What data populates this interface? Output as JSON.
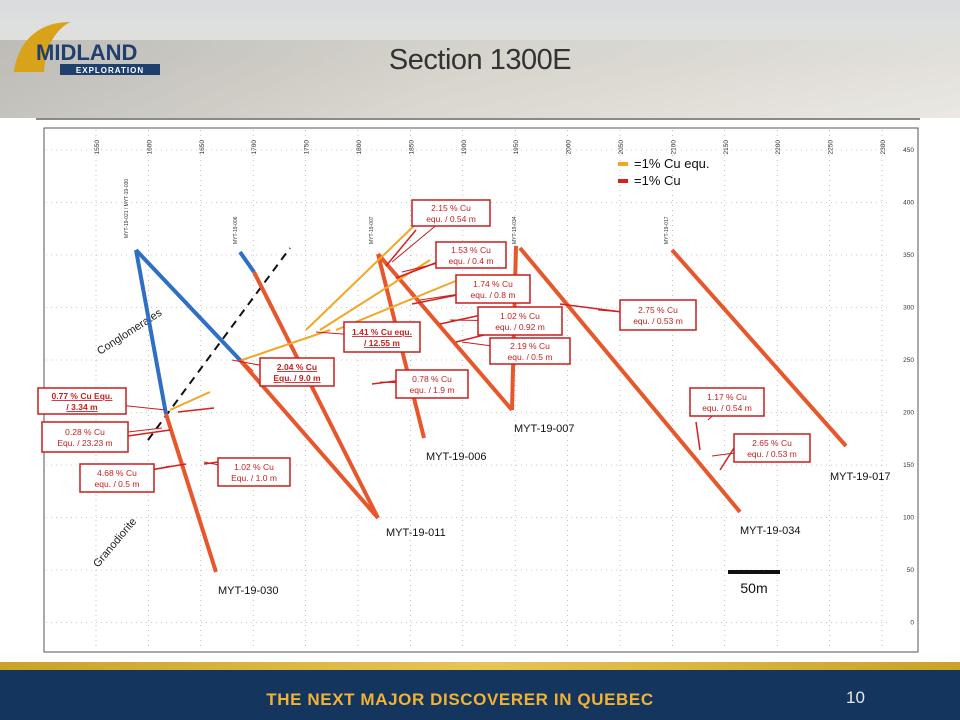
{
  "header": {
    "title": "Section 1300E",
    "logo_text_1": "MIDLAND",
    "logo_text_2": "EXPLORATION"
  },
  "diagram": {
    "x_ticks": [
      "1550",
      "1600",
      "1650",
      "1700",
      "1750",
      "1800",
      "1850",
      "1900",
      "1950",
      "2000",
      "2050",
      "2100",
      "2150",
      "2200",
      "2250",
      "2300"
    ],
    "y_ticks": [
      "450",
      "400",
      "350",
      "300",
      "250",
      "200",
      "150",
      "100",
      "50",
      "0"
    ],
    "legend": [
      {
        "label": "=1% Cu equ.",
        "color": "#f2a623"
      },
      {
        "label": "=1% Cu",
        "color": "#d42020"
      }
    ],
    "holes": [
      {
        "id": "MYT-19-030",
        "collar_tag": "MYT-19-021 / MYT-19-030"
      },
      {
        "id": "MYT-19-011",
        "collar_tag": "MYT-19-006"
      },
      {
        "id": "MYT-19-006",
        "collar_tag": "MYT-19-007"
      },
      {
        "id": "MYT-19-007",
        "collar_tag": "MYT-19-034"
      },
      {
        "id": "MYT-19-034",
        "collar_tag": "MYT-19-017"
      },
      {
        "id": "MYT-19-017",
        "collar_tag": ""
      }
    ],
    "units": {
      "conglomerates": "Conglomerates",
      "granodiorite": "Granodiorite"
    },
    "callouts": [
      {
        "line1": "2.15 % Cu",
        "line2": "equ. / 0.54 m",
        "bold": false
      },
      {
        "line1": "1.53 % Cu",
        "line2": "equ. / 0.4 m",
        "bold": false
      },
      {
        "line1": "1.74 % Cu",
        "line2": "equ. / 0.8 m",
        "bold": false
      },
      {
        "line1": "1.02 % Cu",
        "line2": "equ. / 0.92 m",
        "bold": false
      },
      {
        "line1": "2.19 % Cu",
        "line2": "equ. / 0.5 m",
        "bold": false
      },
      {
        "line1": "1.41 % Cu equ.",
        "line2": "/ 12.55 m",
        "bold": true
      },
      {
        "line1": "2.04 % Cu",
        "line2": "Equ. / 9.0 m",
        "bold": true
      },
      {
        "line1": "0.78 % Cu",
        "line2": "equ. / 1.9 m",
        "bold": false
      },
      {
        "line1": "2.75 % Cu",
        "line2": "equ. / 0.53 m",
        "bold": false
      },
      {
        "line1": "1.17 % Cu",
        "line2": "equ. / 0.54 m",
        "bold": false
      },
      {
        "line1": "2.65 % Cu",
        "line2": "equ. / 0.53 m",
        "bold": false
      },
      {
        "line1": "0.77 % Cu Equ.",
        "line2": "/ 3.34 m",
        "bold": true
      },
      {
        "line1": "0.28 % Cu",
        "line2": "Equ. / 23.23 m",
        "bold": false
      },
      {
        "line1": "4.68 % Cu",
        "line2": "equ. / 0.5 m",
        "bold": false
      },
      {
        "line1": "1.02 % Cu",
        "line2": "Equ. / 1.0 m",
        "bold": false
      }
    ],
    "scale_bar": "50m"
  },
  "footer": {
    "tagline": "THE NEXT MAJOR DISCOVERER IN QUEBEC",
    "page": "10"
  },
  "colors": {
    "hole_trace": "#e8572b",
    "hole_trace_upper": "#2f6fc6",
    "callout_border": "#c81e1e",
    "callout_text": "#c81e1e",
    "footer_bg": "#13355e",
    "footer_text": "#f2b233"
  }
}
